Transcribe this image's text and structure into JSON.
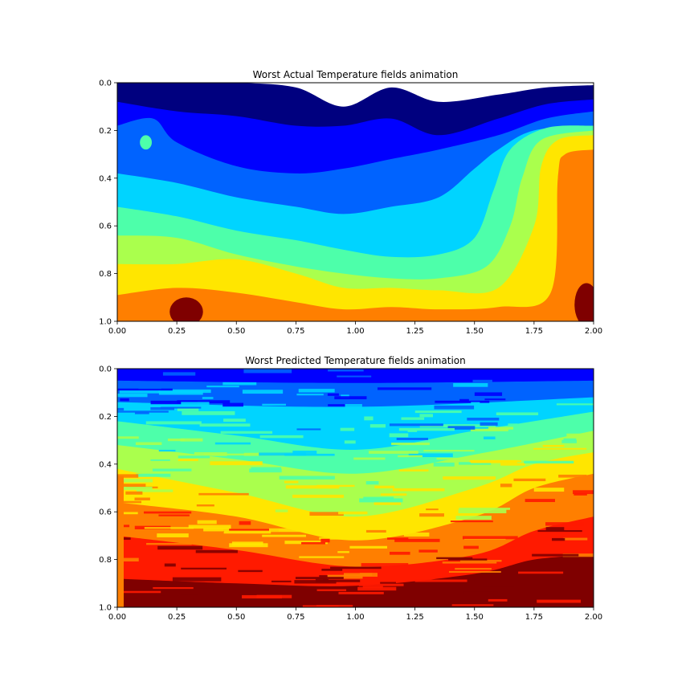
{
  "chart_data": [
    {
      "type": "heatmap",
      "title": "Worst Actual Temperature fields animation",
      "xlim": [
        0,
        2
      ],
      "ylim": [
        1,
        0
      ],
      "x_ticks": [
        "0.00",
        "0.25",
        "0.50",
        "0.75",
        "1.00",
        "1.25",
        "1.50",
        "1.75",
        "2.00"
      ],
      "y_ticks": [
        "0.0",
        "0.2",
        "0.4",
        "0.6",
        "0.8",
        "1.0"
      ],
      "colormap": "jet",
      "levels": 8,
      "contour_bands": [
        {
          "color": "#00007f",
          "boundary_y": [
            [
              0,
              0.0
            ],
            [
              0.25,
              0.0
            ],
            [
              0.5,
              0.0
            ],
            [
              0.75,
              0.02
            ],
            [
              0.95,
              0.1
            ],
            [
              1.15,
              0.02
            ],
            [
              1.35,
              0.08
            ],
            [
              1.6,
              0.05
            ],
            [
              1.8,
              0.02
            ],
            [
              2.0,
              0.01
            ]
          ]
        },
        {
          "color": "#0000ff",
          "boundary_y": [
            [
              0,
              0.08
            ],
            [
              0.25,
              0.12
            ],
            [
              0.5,
              0.14
            ],
            [
              0.75,
              0.18
            ],
            [
              0.95,
              0.18
            ],
            [
              1.15,
              0.15
            ],
            [
              1.35,
              0.22
            ],
            [
              1.6,
              0.15
            ],
            [
              1.8,
              0.09
            ],
            [
              2.0,
              0.07
            ]
          ]
        },
        {
          "color": "#0063ff",
          "boundary_y": [
            [
              0,
              0.18
            ],
            [
              0.15,
              0.15
            ],
            [
              0.25,
              0.25
            ],
            [
              0.5,
              0.35
            ],
            [
              0.75,
              0.38
            ],
            [
              0.95,
              0.36
            ],
            [
              1.15,
              0.32
            ],
            [
              1.35,
              0.28
            ],
            [
              1.6,
              0.22
            ],
            [
              1.8,
              0.15
            ],
            [
              2.0,
              0.12
            ]
          ]
        },
        {
          "color": "#00d4ff",
          "boundary_y": [
            [
              0,
              0.38
            ],
            [
              0.25,
              0.42
            ],
            [
              0.5,
              0.48
            ],
            [
              0.75,
              0.52
            ],
            [
              0.95,
              0.55
            ],
            [
              1.15,
              0.52
            ],
            [
              1.35,
              0.48
            ],
            [
              1.5,
              0.36
            ],
            [
              1.6,
              0.28
            ],
            [
              1.75,
              0.2
            ],
            [
              2.0,
              0.18
            ]
          ]
        },
        {
          "color": "#4dffaa",
          "boundary_y": [
            [
              0,
              0.52
            ],
            [
              0.25,
              0.56
            ],
            [
              0.5,
              0.62
            ],
            [
              0.75,
              0.66
            ],
            [
              0.95,
              0.7
            ],
            [
              1.15,
              0.73
            ],
            [
              1.35,
              0.72
            ],
            [
              1.5,
              0.65
            ],
            [
              1.58,
              0.45
            ],
            [
              1.65,
              0.28
            ],
            [
              1.8,
              0.19
            ],
            [
              2.0,
              0.18
            ]
          ]
        },
        {
          "color": "#aaff4d",
          "boundary_y": [
            [
              0,
              0.64
            ],
            [
              0.25,
              0.65
            ],
            [
              0.5,
              0.72
            ],
            [
              0.75,
              0.77
            ],
            [
              0.95,
              0.8
            ],
            [
              1.15,
              0.82
            ],
            [
              1.35,
              0.82
            ],
            [
              1.55,
              0.77
            ],
            [
              1.65,
              0.6
            ],
            [
              1.7,
              0.4
            ],
            [
              1.78,
              0.24
            ],
            [
              2.0,
              0.2
            ]
          ]
        },
        {
          "color": "#ffe600",
          "boundary_y": [
            [
              0,
              0.76
            ],
            [
              0.25,
              0.76
            ],
            [
              0.5,
              0.74
            ],
            [
              0.75,
              0.8
            ],
            [
              0.95,
              0.86
            ],
            [
              1.15,
              0.86
            ],
            [
              1.35,
              0.87
            ],
            [
              1.6,
              0.86
            ],
            [
              1.75,
              0.6
            ],
            [
              1.78,
              0.35
            ],
            [
              1.85,
              0.24
            ],
            [
              2.0,
              0.22
            ]
          ]
        },
        {
          "color": "#ff7f00",
          "boundary_y": [
            [
              0,
              0.89
            ],
            [
              0.25,
              0.86
            ],
            [
              0.5,
              0.88
            ],
            [
              0.75,
              0.92
            ],
            [
              0.95,
              0.95
            ],
            [
              1.15,
              0.94
            ],
            [
              1.35,
              0.95
            ],
            [
              1.6,
              0.94
            ],
            [
              1.82,
              0.88
            ],
            [
              1.85,
              0.4
            ],
            [
              1.88,
              0.3
            ],
            [
              2.0,
              0.28
            ]
          ]
        },
        {
          "color": "#ff1a00",
          "boundary_y": [
            [
              0,
              1.0
            ],
            [
              2.0,
              1.0
            ]
          ]
        }
      ],
      "patches": [
        {
          "color": "#4dffaa",
          "cx": 0.12,
          "cy": 0.25,
          "rx": 0.025,
          "ry": 0.03
        },
        {
          "color": "#7f0000",
          "cx": 0.29,
          "cy": 0.96,
          "rx": 0.07,
          "ry": 0.06
        },
        {
          "color": "#7f0000",
          "cx": 1.97,
          "cy": 0.93,
          "rx": 0.05,
          "ry": 0.09
        }
      ]
    },
    {
      "type": "heatmap",
      "title": "Worst Predicted Temperature fields animation",
      "xlim": [
        0,
        2
      ],
      "ylim": [
        1,
        0
      ],
      "x_ticks": [
        "0.00",
        "0.25",
        "0.50",
        "0.75",
        "1.00",
        "1.25",
        "1.50",
        "1.75",
        "2.00"
      ],
      "y_ticks": [
        "0.0",
        "0.2",
        "0.4",
        "0.6",
        "0.8",
        "1.0"
      ],
      "colormap": "jet",
      "levels": 9,
      "contour_bands": [
        {
          "color": "#0000ff",
          "boundary_y": [
            [
              0,
              0.0
            ],
            [
              2.0,
              0.0
            ]
          ]
        },
        {
          "color": "#0063ff",
          "boundary_y": [
            [
              0,
              0.05
            ],
            [
              1.0,
              0.06
            ],
            [
              2.0,
              0.05
            ]
          ]
        },
        {
          "color": "#00d4ff",
          "boundary_y": [
            [
              0,
              0.14
            ],
            [
              1.0,
              0.16
            ],
            [
              2.0,
              0.12
            ]
          ]
        },
        {
          "color": "#4dffaa",
          "boundary_y": [
            [
              0,
              0.22
            ],
            [
              0.5,
              0.28
            ],
            [
              1.0,
              0.34
            ],
            [
              1.5,
              0.26
            ],
            [
              2.0,
              0.18
            ]
          ]
        },
        {
          "color": "#aaff4d",
          "boundary_y": [
            [
              0,
              0.32
            ],
            [
              0.5,
              0.38
            ],
            [
              1.0,
              0.44
            ],
            [
              1.5,
              0.36
            ],
            [
              2.0,
              0.26
            ]
          ]
        },
        {
          "color": "#ffe600",
          "boundary_y": [
            [
              0,
              0.42
            ],
            [
              0.5,
              0.52
            ],
            [
              1.0,
              0.62
            ],
            [
              1.5,
              0.5
            ],
            [
              1.75,
              0.4
            ],
            [
              2.0,
              0.35
            ]
          ]
        },
        {
          "color": "#ff7f00",
          "boundary_y": [
            [
              0,
              0.56
            ],
            [
              0.5,
              0.62
            ],
            [
              1.0,
              0.72
            ],
            [
              1.5,
              0.62
            ],
            [
              1.75,
              0.5
            ],
            [
              2.0,
              0.44
            ]
          ]
        },
        {
          "color": "#ff1a00",
          "boundary_y": [
            [
              0,
              0.7
            ],
            [
              0.5,
              0.76
            ],
            [
              1.0,
              0.83
            ],
            [
              1.5,
              0.78
            ],
            [
              1.75,
              0.68
            ],
            [
              2.0,
              0.62
            ]
          ]
        },
        {
          "color": "#7f0000",
          "boundary_y": [
            [
              0,
              0.88
            ],
            [
              0.5,
              0.9
            ],
            [
              1.0,
              0.91
            ],
            [
              1.5,
              0.86
            ],
            [
              1.75,
              0.8
            ],
            [
              2.0,
              0.78
            ]
          ]
        }
      ]
    }
  ]
}
